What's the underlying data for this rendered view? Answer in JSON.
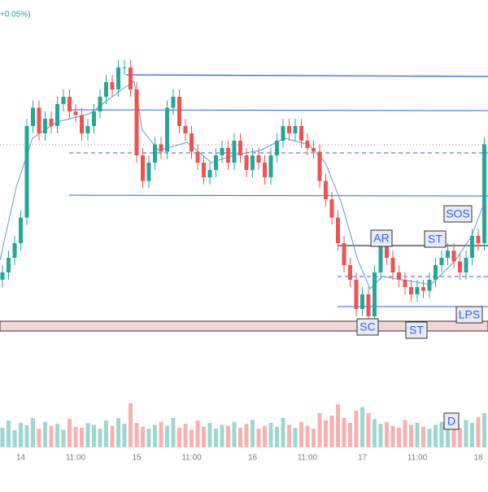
{
  "chart_data": {
    "type": "candlestick",
    "change_label": "+0.05%)",
    "categories": [
      null,
      null,
      null,
      "14",
      null,
      null,
      null,
      null,
      null,
      null,
      null,
      null,
      "11:00",
      null,
      null,
      null,
      null,
      null,
      null,
      null,
      null,
      null,
      "15",
      null,
      null,
      null,
      null,
      null,
      null,
      null,
      null,
      "11:00",
      null,
      null,
      null,
      null,
      null,
      null,
      null,
      null,
      null,
      "16",
      null,
      null,
      null,
      null,
      null,
      null,
      null,
      null,
      "11:00",
      null,
      null,
      null,
      null,
      null,
      null,
      null,
      null,
      "17",
      null,
      null,
      null,
      null,
      null,
      null,
      null,
      null,
      "11:00",
      null,
      null,
      null,
      null,
      null,
      null,
      null,
      null,
      null,
      "18",
      null
    ],
    "open": [
      28,
      30,
      34,
      38,
      45,
      70,
      75,
      68,
      72,
      70,
      76,
      78,
      74,
      73,
      68,
      70,
      74,
      78,
      82,
      80,
      86,
      86,
      80,
      62,
      55,
      60,
      65,
      63,
      75,
      78,
      70,
      68,
      63,
      60,
      56,
      58,
      62,
      64,
      60,
      66,
      62,
      58,
      62,
      60,
      56,
      62,
      66,
      70,
      68,
      70,
      66,
      64,
      63,
      55,
      50,
      45,
      38,
      32,
      28,
      20,
      24,
      18,
      30,
      38,
      34,
      30,
      28,
      26,
      24,
      26,
      25,
      28,
      32,
      34,
      36,
      33,
      30,
      34,
      40,
      38
    ],
    "high": [
      32,
      36,
      40,
      47,
      72,
      77,
      77,
      74,
      74,
      78,
      80,
      80,
      76,
      75,
      72,
      76,
      80,
      84,
      84,
      88,
      88,
      88,
      82,
      64,
      62,
      67,
      67,
      77,
      80,
      80,
      72,
      70,
      65,
      62,
      60,
      64,
      66,
      66,
      68,
      68,
      64,
      64,
      64,
      62,
      64,
      68,
      72,
      72,
      72,
      72,
      68,
      66,
      65,
      57,
      52,
      47,
      40,
      34,
      30,
      26,
      26,
      32,
      40,
      40,
      36,
      32,
      30,
      28,
      28,
      28,
      30,
      34,
      36,
      38,
      38,
      35,
      36,
      42,
      42,
      67
    ],
    "low": [
      26,
      28,
      32,
      36,
      43,
      68,
      66,
      66,
      68,
      68,
      74,
      72,
      71,
      66,
      66,
      68,
      72,
      76,
      78,
      78,
      84,
      78,
      60,
      53,
      53,
      58,
      61,
      61,
      73,
      68,
      66,
      61,
      58,
      54,
      54,
      56,
      60,
      58,
      58,
      60,
      56,
      56,
      58,
      54,
      54,
      60,
      64,
      66,
      66,
      64,
      62,
      61,
      53,
      48,
      43,
      36,
      30,
      26,
      18,
      18,
      16,
      16,
      28,
      32,
      28,
      26,
      24,
      22,
      22,
      23,
      23,
      26,
      30,
      32,
      31,
      28,
      28,
      32,
      36,
      36
    ],
    "close": [
      30,
      34,
      38,
      45,
      70,
      75,
      68,
      72,
      70,
      76,
      78,
      74,
      73,
      68,
      70,
      74,
      78,
      82,
      80,
      86,
      86,
      80,
      62,
      55,
      60,
      65,
      63,
      75,
      78,
      70,
      68,
      63,
      60,
      56,
      58,
      62,
      64,
      60,
      66,
      62,
      58,
      62,
      60,
      56,
      62,
      66,
      70,
      68,
      70,
      66,
      64,
      63,
      55,
      50,
      45,
      38,
      32,
      28,
      20,
      24,
      18,
      30,
      38,
      34,
      30,
      28,
      26,
      24,
      26,
      25,
      28,
      32,
      34,
      36,
      33,
      30,
      34,
      40,
      38,
      65
    ],
    "volume": [
      40,
      55,
      35,
      50,
      45,
      60,
      38,
      52,
      44,
      48,
      36,
      58,
      42,
      40,
      50,
      46,
      38,
      55,
      44,
      60,
      48,
      90,
      50,
      42,
      38,
      46,
      52,
      44,
      60,
      40,
      48,
      36,
      55,
      42,
      50,
      38,
      46,
      44,
      52,
      40,
      48,
      56,
      38,
      44,
      50,
      42,
      60,
      46,
      40,
      52,
      44,
      38,
      70,
      55,
      65,
      88,
      60,
      50,
      75,
      82,
      70,
      58,
      48,
      52,
      44,
      40,
      56,
      46,
      50,
      42,
      38,
      46,
      52,
      48,
      44,
      40,
      56,
      50,
      62,
      70
    ],
    "ylim": [
      0,
      100
    ],
    "volume_lim": [
      0,
      100
    ],
    "up_color": "#26a69a",
    "down_color": "#ef5350",
    "annotations": [
      "AR",
      "ST",
      "SOS",
      "SC",
      "ST",
      "LPS",
      "D"
    ]
  }
}
